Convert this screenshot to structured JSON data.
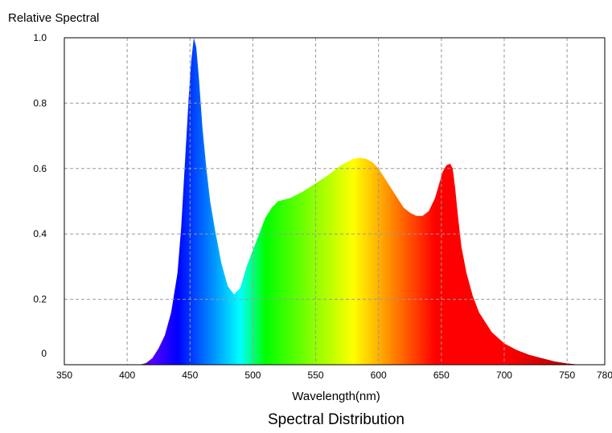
{
  "chart_data": {
    "type": "area",
    "title": "Spectral Distribution",
    "ylabel": "Relative Spectral",
    "xlabel": "Wavelength(nm)",
    "xlim": [
      350,
      780
    ],
    "ylim": [
      0,
      1.0
    ],
    "x_ticks": [
      350,
      400,
      450,
      500,
      550,
      600,
      650,
      700,
      750,
      780
    ],
    "x_tick_labels": [
      "350",
      "400",
      "450",
      "500",
      "550",
      "600",
      "650",
      "700",
      "750",
      "780"
    ],
    "y_ticks": [
      0,
      0.2,
      0.4,
      0.6,
      0.8,
      1.0
    ],
    "y_tick_labels": [
      "0",
      "0.2",
      "0.4",
      "0.6",
      "0.8",
      "1.0"
    ],
    "grid": true,
    "fill": "visible-spectrum colors by wavelength",
    "series": [
      {
        "x": [
          410,
          415,
          420,
          425,
          430,
          435,
          440,
          443,
          446,
          449,
          451,
          453,
          455,
          457,
          460,
          463,
          466,
          470,
          475,
          480,
          485,
          490,
          495,
          500,
          505,
          510,
          515,
          520,
          525,
          530,
          540,
          550,
          560,
          570,
          575,
          580,
          585,
          590,
          595,
          600,
          605,
          610,
          615,
          620,
          625,
          630,
          635,
          640,
          645,
          648,
          651,
          654,
          657,
          659,
          661,
          663,
          666,
          670,
          675,
          680,
          690,
          700,
          710,
          720,
          730,
          740,
          750,
          760
        ],
        "y": [
          0,
          0.005,
          0.02,
          0.05,
          0.09,
          0.16,
          0.28,
          0.42,
          0.62,
          0.82,
          0.93,
          1.0,
          0.97,
          0.88,
          0.72,
          0.6,
          0.5,
          0.41,
          0.31,
          0.24,
          0.215,
          0.235,
          0.3,
          0.35,
          0.4,
          0.45,
          0.48,
          0.5,
          0.505,
          0.51,
          0.53,
          0.555,
          0.58,
          0.61,
          0.62,
          0.63,
          0.633,
          0.63,
          0.62,
          0.6,
          0.57,
          0.54,
          0.51,
          0.48,
          0.465,
          0.455,
          0.455,
          0.47,
          0.51,
          0.55,
          0.59,
          0.61,
          0.615,
          0.6,
          0.54,
          0.46,
          0.36,
          0.28,
          0.21,
          0.16,
          0.1,
          0.065,
          0.045,
          0.03,
          0.02,
          0.01,
          0.004,
          0
        ]
      }
    ]
  }
}
